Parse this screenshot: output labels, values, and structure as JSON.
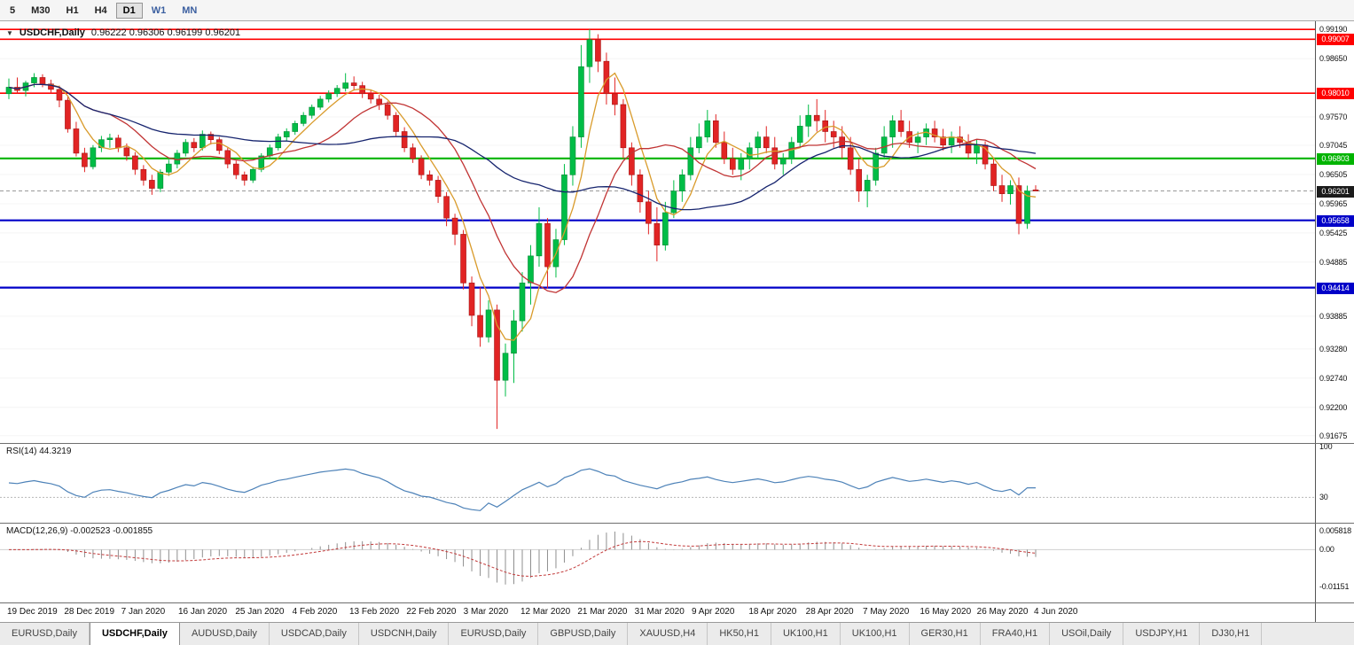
{
  "toolbar": {
    "timeframes": [
      {
        "label": "5"
      },
      {
        "label": "M30"
      },
      {
        "label": "H1"
      },
      {
        "label": "H4"
      },
      {
        "label": "D1",
        "active": true
      },
      {
        "label": "W1",
        "accent": true
      },
      {
        "label": "MN",
        "accent": true
      }
    ]
  },
  "chart_data": {
    "type": "candlestick",
    "symbol": "USDCHF",
    "period": "Daily",
    "title": {
      "dropdown_icon": "▼",
      "symbol": "USDCHF,Daily",
      "values": "0.96222 0.96306 0.96199 0.96201"
    },
    "ohlc_display": {
      "open": "0.96222",
      "high": "0.96306",
      "low": "0.96199",
      "close": "0.96201"
    },
    "price_axis": {
      "min": 0.9154,
      "max": 0.9934,
      "labels": [
        "0.99190",
        "0.98650",
        "0.97570",
        "0.97045",
        "0.96505",
        "0.95965",
        "0.95425",
        "0.94885",
        "0.93885",
        "0.93280",
        "0.92740",
        "0.92200",
        "0.91675"
      ]
    },
    "levels": [
      {
        "price": 0.9919,
        "color": "#ff0000",
        "width": 1.6,
        "tag": null
      },
      {
        "price": 0.99007,
        "color": "#ff0000",
        "width": 1.6,
        "tag": "0.99007"
      },
      {
        "price": 0.9801,
        "color": "#ff0000",
        "width": 1.6,
        "tag": "0.98010"
      },
      {
        "price": 0.96803,
        "color": "#00b400",
        "width": 2.2,
        "tag": "0.96803"
      },
      {
        "price": 0.95658,
        "color": "#0000c8",
        "width": 2.2,
        "tag": "0.95658"
      },
      {
        "price": 0.94414,
        "color": "#0000c8",
        "width": 2.2,
        "tag": "0.94414"
      }
    ],
    "current_price": {
      "price": 0.96201,
      "tag": "0.96201",
      "color": "#1b1b1b"
    },
    "colors": {
      "bull": "#00bd46",
      "bull_border": "#008a33",
      "bear": "#e12424",
      "bear_border": "#a51414"
    },
    "moving_averages": [
      {
        "period": 5,
        "color": "#d99b2b"
      },
      {
        "period": 13,
        "color": "#c13434"
      },
      {
        "period": 34,
        "color": "#16246e"
      }
    ],
    "date_labels": [
      "19 Dec 2019",
      "28 Dec 2019",
      "7 Jan 2020",
      "16 Jan 2020",
      "25 Jan 2020",
      "4 Feb 2020",
      "13 Feb 2020",
      "22 Feb 2020",
      "3 Mar 2020",
      "12 Mar 2020",
      "21 Mar 2020",
      "31 Mar 2020",
      "9 Apr 2020",
      "18 Apr 2020",
      "28 Apr 2020",
      "7 May 2020",
      "16 May 2020",
      "26 May 2020",
      "4 Jun 2020"
    ],
    "rsi": {
      "label": "RSI(14) 44.3219",
      "period": 14,
      "last_value": "44.3219",
      "color": "#4d82b8",
      "axis": [
        {
          "label": "100",
          "value": 100
        },
        {
          "label": "30",
          "value": 30
        }
      ]
    },
    "macd": {
      "label": "MACD(12,26,9) -0.002523 -0.001855",
      "fast": 12,
      "slow": 26,
      "signal": 9,
      "last_macd": "-0.002523",
      "last_signal": "-0.001855",
      "histogram_color": "#8f8f8f",
      "signal_color": "#c23b3b",
      "axis": [
        {
          "label": "0.005818",
          "value": 0.005818
        },
        {
          "label": "0.00",
          "value": 0
        },
        {
          "label": "-0.01151",
          "value": -0.01151
        }
      ]
    },
    "candles": [
      [
        0.98,
        0.9828,
        0.979,
        0.9812
      ],
      [
        0.9812,
        0.983,
        0.98,
        0.9806
      ],
      [
        0.9806,
        0.9824,
        0.9795,
        0.982
      ],
      [
        0.982,
        0.9838,
        0.9812,
        0.983
      ],
      [
        0.983,
        0.9836,
        0.9812,
        0.9818
      ],
      [
        0.9818,
        0.9826,
        0.98,
        0.9808
      ],
      [
        0.9808,
        0.9815,
        0.9775,
        0.9788
      ],
      [
        0.9788,
        0.9795,
        0.9728,
        0.9735
      ],
      [
        0.9735,
        0.9748,
        0.9684,
        0.969
      ],
      [
        0.969,
        0.97,
        0.9655,
        0.9665
      ],
      [
        0.9665,
        0.9705,
        0.966,
        0.97
      ],
      [
        0.97,
        0.9722,
        0.9692,
        0.9715
      ],
      [
        0.9715,
        0.9726,
        0.97,
        0.9718
      ],
      [
        0.9718,
        0.9724,
        0.9692,
        0.97
      ],
      [
        0.97,
        0.9708,
        0.9676,
        0.9685
      ],
      [
        0.9685,
        0.9692,
        0.965,
        0.966
      ],
      [
        0.966,
        0.9668,
        0.963,
        0.964
      ],
      [
        0.964,
        0.965,
        0.9613,
        0.9625
      ],
      [
        0.9625,
        0.966,
        0.9618,
        0.9655
      ],
      [
        0.9655,
        0.9678,
        0.9648,
        0.967
      ],
      [
        0.967,
        0.9696,
        0.9662,
        0.969
      ],
      [
        0.969,
        0.9716,
        0.9684,
        0.971
      ],
      [
        0.971,
        0.9718,
        0.9692,
        0.97
      ],
      [
        0.97,
        0.9732,
        0.9695,
        0.9725
      ],
      [
        0.9725,
        0.973,
        0.9706,
        0.9715
      ],
      [
        0.9715,
        0.972,
        0.9688,
        0.9695
      ],
      [
        0.9695,
        0.97,
        0.9662,
        0.967
      ],
      [
        0.967,
        0.9676,
        0.9642,
        0.965
      ],
      [
        0.965,
        0.9656,
        0.963,
        0.964
      ],
      [
        0.964,
        0.9665,
        0.9635,
        0.966
      ],
      [
        0.966,
        0.969,
        0.9655,
        0.9685
      ],
      [
        0.9685,
        0.9706,
        0.968,
        0.97
      ],
      [
        0.97,
        0.9726,
        0.9695,
        0.972
      ],
      [
        0.972,
        0.9736,
        0.9712,
        0.973
      ],
      [
        0.973,
        0.975,
        0.9724,
        0.9745
      ],
      [
        0.9745,
        0.9766,
        0.974,
        0.976
      ],
      [
        0.976,
        0.978,
        0.9754,
        0.9775
      ],
      [
        0.9775,
        0.9796,
        0.977,
        0.979
      ],
      [
        0.979,
        0.9806,
        0.9784,
        0.98
      ],
      [
        0.98,
        0.9816,
        0.9794,
        0.981
      ],
      [
        0.981,
        0.9838,
        0.9804,
        0.982
      ],
      [
        0.982,
        0.9832,
        0.9806,
        0.9815
      ],
      [
        0.9815,
        0.9822,
        0.9792,
        0.98
      ],
      [
        0.98,
        0.9808,
        0.9782,
        0.979
      ],
      [
        0.979,
        0.9798,
        0.977,
        0.978
      ],
      [
        0.978,
        0.9786,
        0.9752,
        0.976
      ],
      [
        0.976,
        0.9766,
        0.9722,
        0.973
      ],
      [
        0.973,
        0.9738,
        0.9692,
        0.97
      ],
      [
        0.97,
        0.9708,
        0.9672,
        0.968
      ],
      [
        0.968,
        0.9686,
        0.9642,
        0.965
      ],
      [
        0.965,
        0.9658,
        0.963,
        0.964
      ],
      [
        0.964,
        0.9648,
        0.9598,
        0.961
      ],
      [
        0.961,
        0.9618,
        0.9555,
        0.957
      ],
      [
        0.957,
        0.9578,
        0.952,
        0.954
      ],
      [
        0.954,
        0.9548,
        0.9438,
        0.945
      ],
      [
        0.945,
        0.9462,
        0.937,
        0.939
      ],
      [
        0.939,
        0.9442,
        0.9332,
        0.935
      ],
      [
        0.935,
        0.9418,
        0.934,
        0.94
      ],
      [
        0.94,
        0.941,
        0.918,
        0.927
      ],
      [
        0.927,
        0.9338,
        0.924,
        0.932
      ],
      [
        0.932,
        0.94,
        0.9265,
        0.938
      ],
      [
        0.938,
        0.947,
        0.936,
        0.945
      ],
      [
        0.945,
        0.952,
        0.941,
        0.95
      ],
      [
        0.95,
        0.959,
        0.948,
        0.956
      ],
      [
        0.956,
        0.957,
        0.944,
        0.948
      ],
      [
        0.948,
        0.955,
        0.946,
        0.953
      ],
      [
        0.953,
        0.967,
        0.952,
        0.965
      ],
      [
        0.965,
        0.974,
        0.963,
        0.972
      ],
      [
        0.972,
        0.989,
        0.97,
        0.985
      ],
      [
        0.985,
        0.9919,
        0.982,
        0.99
      ],
      [
        0.99,
        0.991,
        0.984,
        0.986
      ],
      [
        0.986,
        0.9876,
        0.978,
        0.98
      ],
      [
        0.98,
        0.983,
        0.976,
        0.978
      ],
      [
        0.978,
        0.979,
        0.968,
        0.97
      ],
      [
        0.97,
        0.971,
        0.963,
        0.965
      ],
      [
        0.965,
        0.966,
        0.958,
        0.96
      ],
      [
        0.96,
        0.962,
        0.954,
        0.956
      ],
      [
        0.956,
        0.959,
        0.949,
        0.952
      ],
      [
        0.952,
        0.96,
        0.951,
        0.958
      ],
      [
        0.958,
        0.964,
        0.957,
        0.962
      ],
      [
        0.962,
        0.966,
        0.96,
        0.965
      ],
      [
        0.965,
        0.972,
        0.964,
        0.97
      ],
      [
        0.97,
        0.9745,
        0.969,
        0.972
      ],
      [
        0.972,
        0.977,
        0.971,
        0.975
      ],
      [
        0.975,
        0.9762,
        0.97,
        0.971
      ],
      [
        0.971,
        0.973,
        0.967,
        0.968
      ],
      [
        0.968,
        0.97,
        0.965,
        0.966
      ],
      [
        0.966,
        0.969,
        0.964,
        0.968
      ],
      [
        0.968,
        0.971,
        0.966,
        0.97
      ],
      [
        0.97,
        0.973,
        0.968,
        0.972
      ],
      [
        0.972,
        0.974,
        0.969,
        0.97
      ],
      [
        0.97,
        0.972,
        0.966,
        0.967
      ],
      [
        0.967,
        0.969,
        0.965,
        0.968
      ],
      [
        0.968,
        0.972,
        0.967,
        0.971
      ],
      [
        0.971,
        0.976,
        0.97,
        0.974
      ],
      [
        0.974,
        0.978,
        0.972,
        0.976
      ],
      [
        0.976,
        0.979,
        0.973,
        0.975
      ],
      [
        0.975,
        0.977,
        0.971,
        0.973
      ],
      [
        0.973,
        0.975,
        0.97,
        0.972
      ],
      [
        0.972,
        0.974,
        0.968,
        0.97
      ],
      [
        0.97,
        0.972,
        0.965,
        0.966
      ],
      [
        0.966,
        0.968,
        0.96,
        0.962
      ],
      [
        0.962,
        0.965,
        0.959,
        0.964
      ],
      [
        0.964,
        0.97,
        0.963,
        0.969
      ],
      [
        0.969,
        0.974,
        0.968,
        0.972
      ],
      [
        0.972,
        0.976,
        0.97,
        0.975
      ],
      [
        0.975,
        0.977,
        0.972,
        0.973
      ],
      [
        0.973,
        0.975,
        0.97,
        0.971
      ],
      [
        0.971,
        0.973,
        0.969,
        0.972
      ],
      [
        0.972,
        0.9745,
        0.9705,
        0.9735
      ],
      [
        0.9735,
        0.975,
        0.971,
        0.972
      ],
      [
        0.972,
        0.9735,
        0.9695,
        0.9705
      ],
      [
        0.9705,
        0.973,
        0.969,
        0.972
      ],
      [
        0.972,
        0.974,
        0.97,
        0.971
      ],
      [
        0.971,
        0.9725,
        0.968,
        0.969
      ],
      [
        0.969,
        0.9715,
        0.967,
        0.9705
      ],
      [
        0.9705,
        0.9712,
        0.966,
        0.967
      ],
      [
        0.967,
        0.968,
        0.962,
        0.963
      ],
      [
        0.963,
        0.965,
        0.96,
        0.9615
      ],
      [
        0.9615,
        0.964,
        0.9595,
        0.963
      ],
      [
        0.963,
        0.9645,
        0.954,
        0.956
      ],
      [
        0.956,
        0.963,
        0.955,
        0.962
      ],
      [
        0.96222,
        0.96306,
        0.96199,
        0.96201
      ]
    ]
  },
  "tabs": [
    {
      "label": "EURUSD,Daily"
    },
    {
      "label": "USDCHF,Daily",
      "active": true
    },
    {
      "label": "AUDUSD,Daily"
    },
    {
      "label": "USDCAD,Daily"
    },
    {
      "label": "USDCNH,Daily"
    },
    {
      "label": "EURUSD,Daily"
    },
    {
      "label": "GBPUSD,Daily"
    },
    {
      "label": "XAUUSD,H4"
    },
    {
      "label": "HK50,H1"
    },
    {
      "label": "UK100,H1"
    },
    {
      "label": "UK100,H1"
    },
    {
      "label": "GER30,H1"
    },
    {
      "label": "FRA40,H1"
    },
    {
      "label": "USOil,Daily"
    },
    {
      "label": "USDJPY,H1"
    },
    {
      "label": "DJ30,H1"
    }
  ]
}
